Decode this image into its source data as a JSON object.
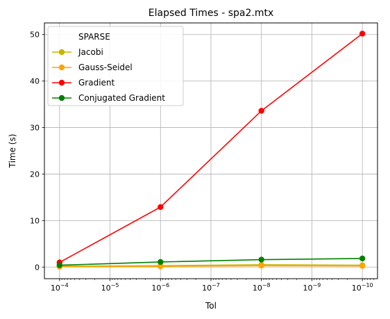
{
  "chart_data": {
    "type": "line",
    "title": "Elapsed Times - spa2.mtx",
    "xlabel": "Tol",
    "ylabel": "Time (s)",
    "x_scale": "log",
    "x_inverted": true,
    "x": [
      0.0001,
      1e-06,
      1e-08,
      1e-10
    ],
    "xticks": [
      {
        "value": 0.0001,
        "base": "10",
        "exp": "−4"
      },
      {
        "value": 1e-05,
        "base": "10",
        "exp": "−5"
      },
      {
        "value": 1e-06,
        "base": "10",
        "exp": "−6"
      },
      {
        "value": 1e-07,
        "base": "10",
        "exp": "−7"
      },
      {
        "value": 1e-08,
        "base": "10",
        "exp": "−8"
      },
      {
        "value": 1e-09,
        "base": "10",
        "exp": "−9"
      },
      {
        "value": 1e-10,
        "base": "10",
        "exp": "−10"
      }
    ],
    "yticks": [
      0,
      10,
      20,
      30,
      40,
      50
    ],
    "ylim": [
      -2.5,
      52.5
    ],
    "grid": true,
    "legend": {
      "placement": "top-left",
      "title": "SPARSE"
    },
    "series": [
      {
        "name": "Jacobi",
        "color": "#c8b400",
        "values": [
          0.2,
          0.3,
          0.5,
          0.4
        ]
      },
      {
        "name": "Gauss-Seidel",
        "color": "#ffa500",
        "values": [
          0.1,
          0.15,
          0.3,
          0.25
        ]
      },
      {
        "name": "Gradient",
        "color": "#ff0000",
        "values": [
          1.0,
          12.9,
          33.6,
          50.2
        ]
      },
      {
        "name": "Conjugated Gradient",
        "color": "#008000",
        "values": [
          0.4,
          1.1,
          1.6,
          1.85
        ]
      }
    ]
  }
}
